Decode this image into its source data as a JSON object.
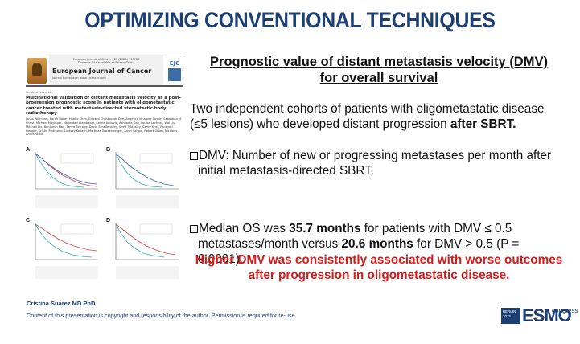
{
  "slide": {
    "title": "OPTIMIZING CONVENTIONAL TECHNIQUES",
    "subtitle_line1": "Prognostic value of distant metastasis velocity (DMV)",
    "subtitle_line2": "for overall survival",
    "intro_line1": "Two independent cohorts of patients with oligometastatic disease",
    "intro_line2_prefix": "(≤5 lesions) who developed distant progression ",
    "intro_line2_bold": "after SBRT.",
    "bullet1_line1": "DMV: Number of new or progressing metastases per month after",
    "bullet1_line2": "initial metastasis-directed SBRT.",
    "bullet2_prefix": "Median OS was ",
    "bullet2_bold1": "35.7 months",
    "bullet2_mid1": " for patients with DMV ≤ 0.5",
    "bullet2_line2_prefix": "metastases/month versus ",
    "bullet2_bold2": "20.6 months",
    "bullet2_line2_suffix": " for DMV > 0.5 (P =",
    "bullet2_line3": "0.0001).",
    "highlight_line1": "Higher DMV was consistently associated with worse outcomes",
    "highlight_line2": "after progression in oligometastatic disease."
  },
  "paper": {
    "header_small": "European Journal of Cancer 225 (2025) 115729",
    "header_small2": "Contents lists available at ScienceDirect",
    "journal": "European Journal of Cancer",
    "homepage": "journal homepage: www.ejcancer.com",
    "ejc_mark": "EJC",
    "original_research": "Original research",
    "title": "Multinational validation of distant metastasis velocity as a post-progression prognostic score in patients with oligometastatic cancer treated with metastasis-directed stereotactic body radiotherapy",
    "authors": "Jonas Willmann, Sarah Baker, Haoho Chen, Edward Christopher Dee, Angelica Vinalone Saylor, Sebastian M. Christ, Michael Mayinger, Maherdad Alambakar, Selma Adilovic, Ashbadia Dao, Louise Lechner, Wai Liu, Mitchell Liu, Benjamin Mou, Tanya Berrang, Devin Schellenberg, Scott Tyldesley, Corby Krist, Panayoti Iyengar, Kristin Redmond, Lindsey Kovach, Matthias Guckenberger, Arjun Sahgal, Robert Olson, Nicolaus Andratschke",
    "panels": [
      "A",
      "B",
      "C",
      "D"
    ]
  },
  "footer": {
    "author": "Cristina Suárez MD PhD",
    "copyright": "Content of this presentation is copyright and responsibility of the author. Permission is required for re-use",
    "esmo_box": "BERLIN 2025",
    "esmo_word": "ESMO",
    "esmo_congress": "congress"
  },
  "colors": {
    "title": "#1c3f73",
    "highlight": "#d71b1b",
    "curve_red": "#d04040",
    "curve_teal": "#30b0a8",
    "curve_blue": "#3060c0"
  }
}
